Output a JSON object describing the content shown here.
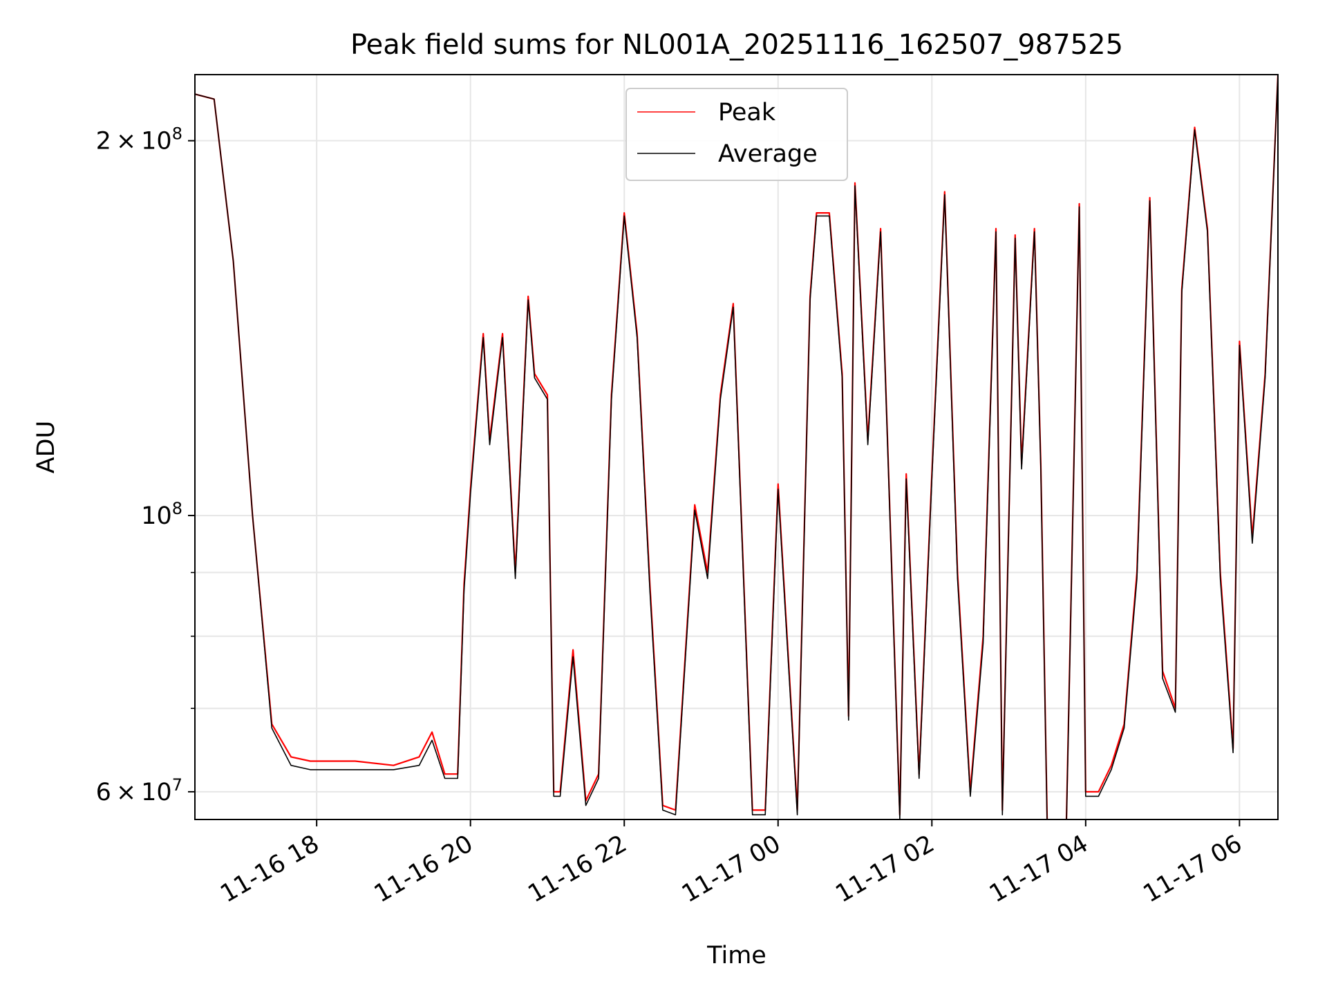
{
  "chart_data": {
    "type": "line",
    "title": "Peak field sums for NL001A_20251116_162507_987525",
    "xlabel": "Time",
    "ylabel": "ADU",
    "x_ticks": [
      "11-16 18",
      "11-16 20",
      "11-16 22",
      "11-17 00",
      "11-17 02",
      "11-17 04",
      "11-17 06"
    ],
    "y_scale": "log",
    "y_major_ticks": [
      {
        "value": 60000000,
        "label": "6 × 10^7"
      },
      {
        "value": 100000000,
        "label": "10^8"
      },
      {
        "value": 200000000,
        "label": "2 × 10^8"
      }
    ],
    "y_minor_ticks": [
      70000000,
      80000000,
      90000000
    ],
    "xlim": [
      "2025-11-16 16:25",
      "2025-11-17 06:30"
    ],
    "ylim": [
      57000000,
      226000000
    ],
    "grid": true,
    "legend": {
      "position": "top-center",
      "entries": [
        "Peak",
        "Average"
      ]
    },
    "series": [
      {
        "name": "Peak",
        "color": "#ff0000",
        "x": [
          "2025-11-16 16:25",
          "2025-11-16 16:40",
          "2025-11-16 16:55",
          "2025-11-16 17:10",
          "2025-11-16 17:25",
          "2025-11-16 17:40",
          "2025-11-16 17:55",
          "2025-11-16 18:10",
          "2025-11-16 18:30",
          "2025-11-16 19:00",
          "2025-11-16 19:20",
          "2025-11-16 19:30",
          "2025-11-16 19:40",
          "2025-11-16 19:50",
          "2025-11-16 19:55",
          "2025-11-16 20:00",
          "2025-11-16 20:10",
          "2025-11-16 20:15",
          "2025-11-16 20:25",
          "2025-11-16 20:35",
          "2025-11-16 20:45",
          "2025-11-16 20:50",
          "2025-11-16 21:00",
          "2025-11-16 21:05",
          "2025-11-16 21:10",
          "2025-11-16 21:20",
          "2025-11-16 21:30",
          "2025-11-16 21:40",
          "2025-11-16 21:50",
          "2025-11-16 22:00",
          "2025-11-16 22:10",
          "2025-11-16 22:20",
          "2025-11-16 22:30",
          "2025-11-16 22:40",
          "2025-11-16 22:55",
          "2025-11-16 23:05",
          "2025-11-16 23:15",
          "2025-11-16 23:25",
          "2025-11-16 23:40",
          "2025-11-16 23:50",
          "2025-11-17 00:00",
          "2025-11-17 00:15",
          "2025-11-17 00:25",
          "2025-11-17 00:30",
          "2025-11-17 00:40",
          "2025-11-17 00:50",
          "2025-11-17 00:55",
          "2025-11-17 01:00",
          "2025-11-17 01:10",
          "2025-11-17 01:20",
          "2025-11-17 01:35",
          "2025-11-17 01:40",
          "2025-11-17 01:50",
          "2025-11-17 02:00",
          "2025-11-17 02:10",
          "2025-11-17 02:20",
          "2025-11-17 02:30",
          "2025-11-17 02:40",
          "2025-11-17 02:50",
          "2025-11-17 02:55",
          "2025-11-17 03:05",
          "2025-11-17 03:10",
          "2025-11-17 03:20",
          "2025-11-17 03:25",
          "2025-11-17 03:30",
          "2025-11-17 03:45",
          "2025-11-17 03:55",
          "2025-11-17 04:00",
          "2025-11-17 04:10",
          "2025-11-17 04:20",
          "2025-11-17 04:30",
          "2025-11-17 04:40",
          "2025-11-17 04:50",
          "2025-11-17 05:00",
          "2025-11-17 05:10",
          "2025-11-17 05:15",
          "2025-11-17 05:25",
          "2025-11-17 05:35",
          "2025-11-17 05:45",
          "2025-11-17 05:55",
          "2025-11-17 06:00",
          "2025-11-17 06:10",
          "2025-11-17 06:20",
          "2025-11-17 06:30"
        ],
        "values": [
          218000000,
          216000000,
          160000000,
          100000000,
          68000000,
          64000000,
          63500000,
          63500000,
          63500000,
          63000000,
          64000000,
          67000000,
          62000000,
          62000000,
          88000000,
          105000000,
          140000000,
          115000000,
          140000000,
          90000000,
          150000000,
          130000000,
          125000000,
          60000000,
          60000000,
          78000000,
          59000000,
          62000000,
          125000000,
          175000000,
          140000000,
          88000000,
          58500000,
          58000000,
          102000000,
          90000000,
          125000000,
          148000000,
          58000000,
          58000000,
          106000000,
          58000000,
          150000000,
          175000000,
          175000000,
          130000000,
          69000000,
          185000000,
          115000000,
          170000000,
          57500000,
          108000000,
          62000000,
          108000000,
          182000000,
          90000000,
          60000000,
          80000000,
          170000000,
          58000000,
          168000000,
          110000000,
          170000000,
          110000000,
          56500000,
          57000000,
          178000000,
          60000000,
          60000000,
          63000000,
          68000000,
          90000000,
          180000000,
          75000000,
          70000000,
          152000000,
          205000000,
          170000000,
          90000000,
          65000000,
          138000000,
          96000000,
          130000000,
          226000000
        ]
      },
      {
        "name": "Average",
        "color": "#000000",
        "x": [
          "2025-11-16 16:25",
          "2025-11-16 16:40",
          "2025-11-16 16:55",
          "2025-11-16 17:10",
          "2025-11-16 17:25",
          "2025-11-16 17:40",
          "2025-11-16 17:55",
          "2025-11-16 18:10",
          "2025-11-16 18:30",
          "2025-11-16 19:00",
          "2025-11-16 19:20",
          "2025-11-16 19:30",
          "2025-11-16 19:40",
          "2025-11-16 19:50",
          "2025-11-16 19:55",
          "2025-11-16 20:00",
          "2025-11-16 20:10",
          "2025-11-16 20:15",
          "2025-11-16 20:25",
          "2025-11-16 20:35",
          "2025-11-16 20:45",
          "2025-11-16 20:50",
          "2025-11-16 21:00",
          "2025-11-16 21:05",
          "2025-11-16 21:10",
          "2025-11-16 21:20",
          "2025-11-16 21:30",
          "2025-11-16 21:40",
          "2025-11-16 21:50",
          "2025-11-16 22:00",
          "2025-11-16 22:10",
          "2025-11-16 22:20",
          "2025-11-16 22:30",
          "2025-11-16 22:40",
          "2025-11-16 22:55",
          "2025-11-16 23:05",
          "2025-11-16 23:15",
          "2025-11-16 23:25",
          "2025-11-16 23:40",
          "2025-11-16 23:50",
          "2025-11-17 00:00",
          "2025-11-17 00:15",
          "2025-11-17 00:25",
          "2025-11-17 00:30",
          "2025-11-17 00:40",
          "2025-11-17 00:50",
          "2025-11-17 00:55",
          "2025-11-17 01:00",
          "2025-11-17 01:10",
          "2025-11-17 01:20",
          "2025-11-17 01:35",
          "2025-11-17 01:40",
          "2025-11-17 01:50",
          "2025-11-17 02:00",
          "2025-11-17 02:10",
          "2025-11-17 02:20",
          "2025-11-17 02:30",
          "2025-11-17 02:40",
          "2025-11-17 02:50",
          "2025-11-17 02:55",
          "2025-11-17 03:05",
          "2025-11-17 03:10",
          "2025-11-17 03:20",
          "2025-11-17 03:25",
          "2025-11-17 03:30",
          "2025-11-17 03:45",
          "2025-11-17 03:55",
          "2025-11-17 04:00",
          "2025-11-17 04:10",
          "2025-11-17 04:20",
          "2025-11-17 04:30",
          "2025-11-17 04:40",
          "2025-11-17 04:50",
          "2025-11-17 05:00",
          "2025-11-17 05:10",
          "2025-11-17 05:15",
          "2025-11-17 05:25",
          "2025-11-17 05:35",
          "2025-11-17 05:45",
          "2025-11-17 05:55",
          "2025-11-17 06:00",
          "2025-11-17 06:10",
          "2025-11-17 06:20",
          "2025-11-17 06:30"
        ],
        "values": [
          218000000,
          216000000,
          160000000,
          100000000,
          67500000,
          63000000,
          62500000,
          62500000,
          62500000,
          62500000,
          63000000,
          66000000,
          61500000,
          61500000,
          87000000,
          104000000,
          139000000,
          114000000,
          139000000,
          89000000,
          149000000,
          129000000,
          124000000,
          59500000,
          59500000,
          77000000,
          58500000,
          61500000,
          124000000,
          174000000,
          139000000,
          87000000,
          58000000,
          57500000,
          101000000,
          89000000,
          124000000,
          147000000,
          57500000,
          57500000,
          105000000,
          57500000,
          149000000,
          174000000,
          174000000,
          129000000,
          68500000,
          184000000,
          114000000,
          169000000,
          57000000,
          107000000,
          61500000,
          107000000,
          181000000,
          89000000,
          59500000,
          79000000,
          169000000,
          57500000,
          167000000,
          109000000,
          169000000,
          109000000,
          56000000,
          56500000,
          177000000,
          59500000,
          59500000,
          62500000,
          67500000,
          89000000,
          179000000,
          74000000,
          69500000,
          151000000,
          204000000,
          169000000,
          89000000,
          64500000,
          137000000,
          95000000,
          129000000,
          226000000
        ]
      }
    ]
  }
}
